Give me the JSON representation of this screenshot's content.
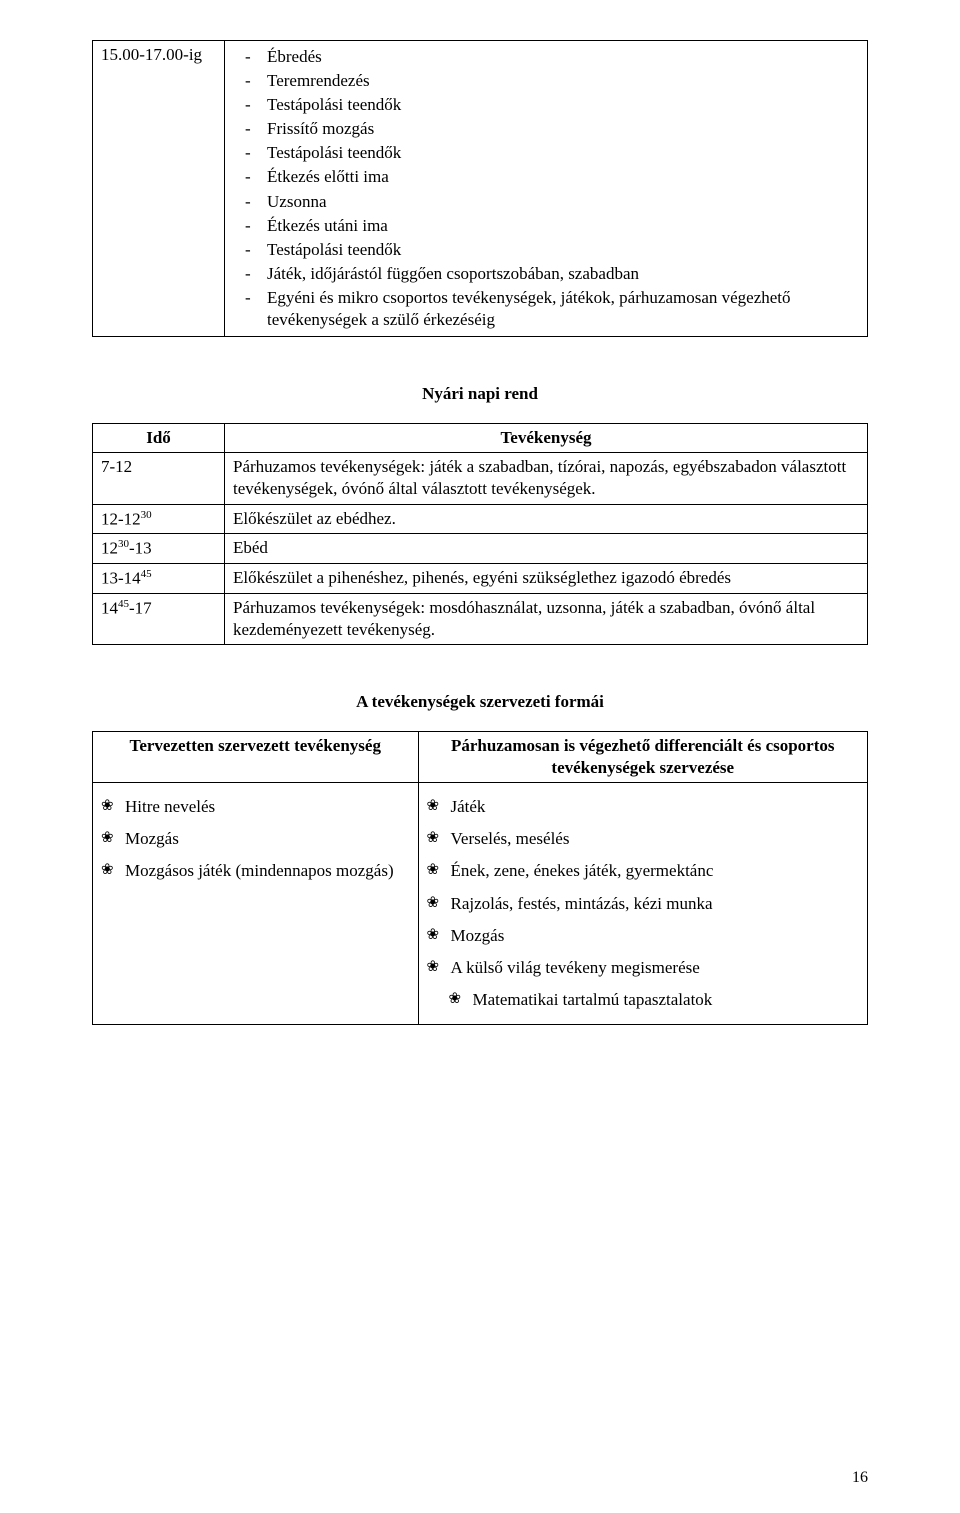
{
  "table1": {
    "time": "15.00-17.00-ig",
    "items": [
      "Ébredés",
      "Teremrendezés",
      "Testápolási teendők",
      "Frissítő mozgás",
      "Testápolási teendők",
      "Étkezés előtti ima",
      "Uzsonna",
      "Étkezés utáni ima",
      "Testápolási teendők",
      "Játék, időjárástól függően csoportszobában, szabadban",
      "Egyéni és mikro csoportos tevékenységek, játékok, párhuzamosan végezhető tevékenységek a szülő érkezéséig"
    ]
  },
  "heading1": "Nyári napi rend",
  "table2": {
    "head": {
      "c1": "Idő",
      "c2": "Tevékenység"
    },
    "rows": [
      {
        "time": "7-12",
        "text": "Párhuzamos tevékenységek: játék a szabadban, tízórai, napozás, egyébszabadon választott tevékenységek, óvónő által választott tevékenységek."
      },
      {
        "time_html": "12-12<sup>30</sup>",
        "text": "Előkészület az ebédhez."
      },
      {
        "time_html": "12<sup>30</sup>-13",
        "text": "Ebéd"
      },
      {
        "time_html": "13-14<sup>45</sup>",
        "text": "Előkészület a pihenéshez, pihenés, egyéni szükséglethez igazodó ébredés"
      },
      {
        "time_html": "14<sup>45</sup>-17",
        "text": "Párhuzamos tevékenységek: mosdóhasználat, uzsonna, játék a szabadban, óvónő által kezdeményezett tevékenység."
      }
    ]
  },
  "heading2": "A tevékenységek szervezeti formái",
  "table3": {
    "head": {
      "c1": "Tervezetten szervezett tevékenység",
      "c2": "Párhuzamosan is végezhető differenciált és csoportos tevékenységek szervezése"
    },
    "left": [
      "Hitre nevelés",
      "Mozgás",
      "Mozgásos játék (mindennapos mozgás)"
    ],
    "right": [
      "Játék",
      "Verselés, mesélés",
      "Ének, zene, énekes játék, gyermektánc",
      "Rajzolás, festés, mintázás, kézi munka",
      "Mozgás",
      "A külső világ tevékeny megismerése"
    ],
    "right_indent": [
      "Matematikai tartalmú tapasztalatok"
    ]
  },
  "page_number": "16"
}
